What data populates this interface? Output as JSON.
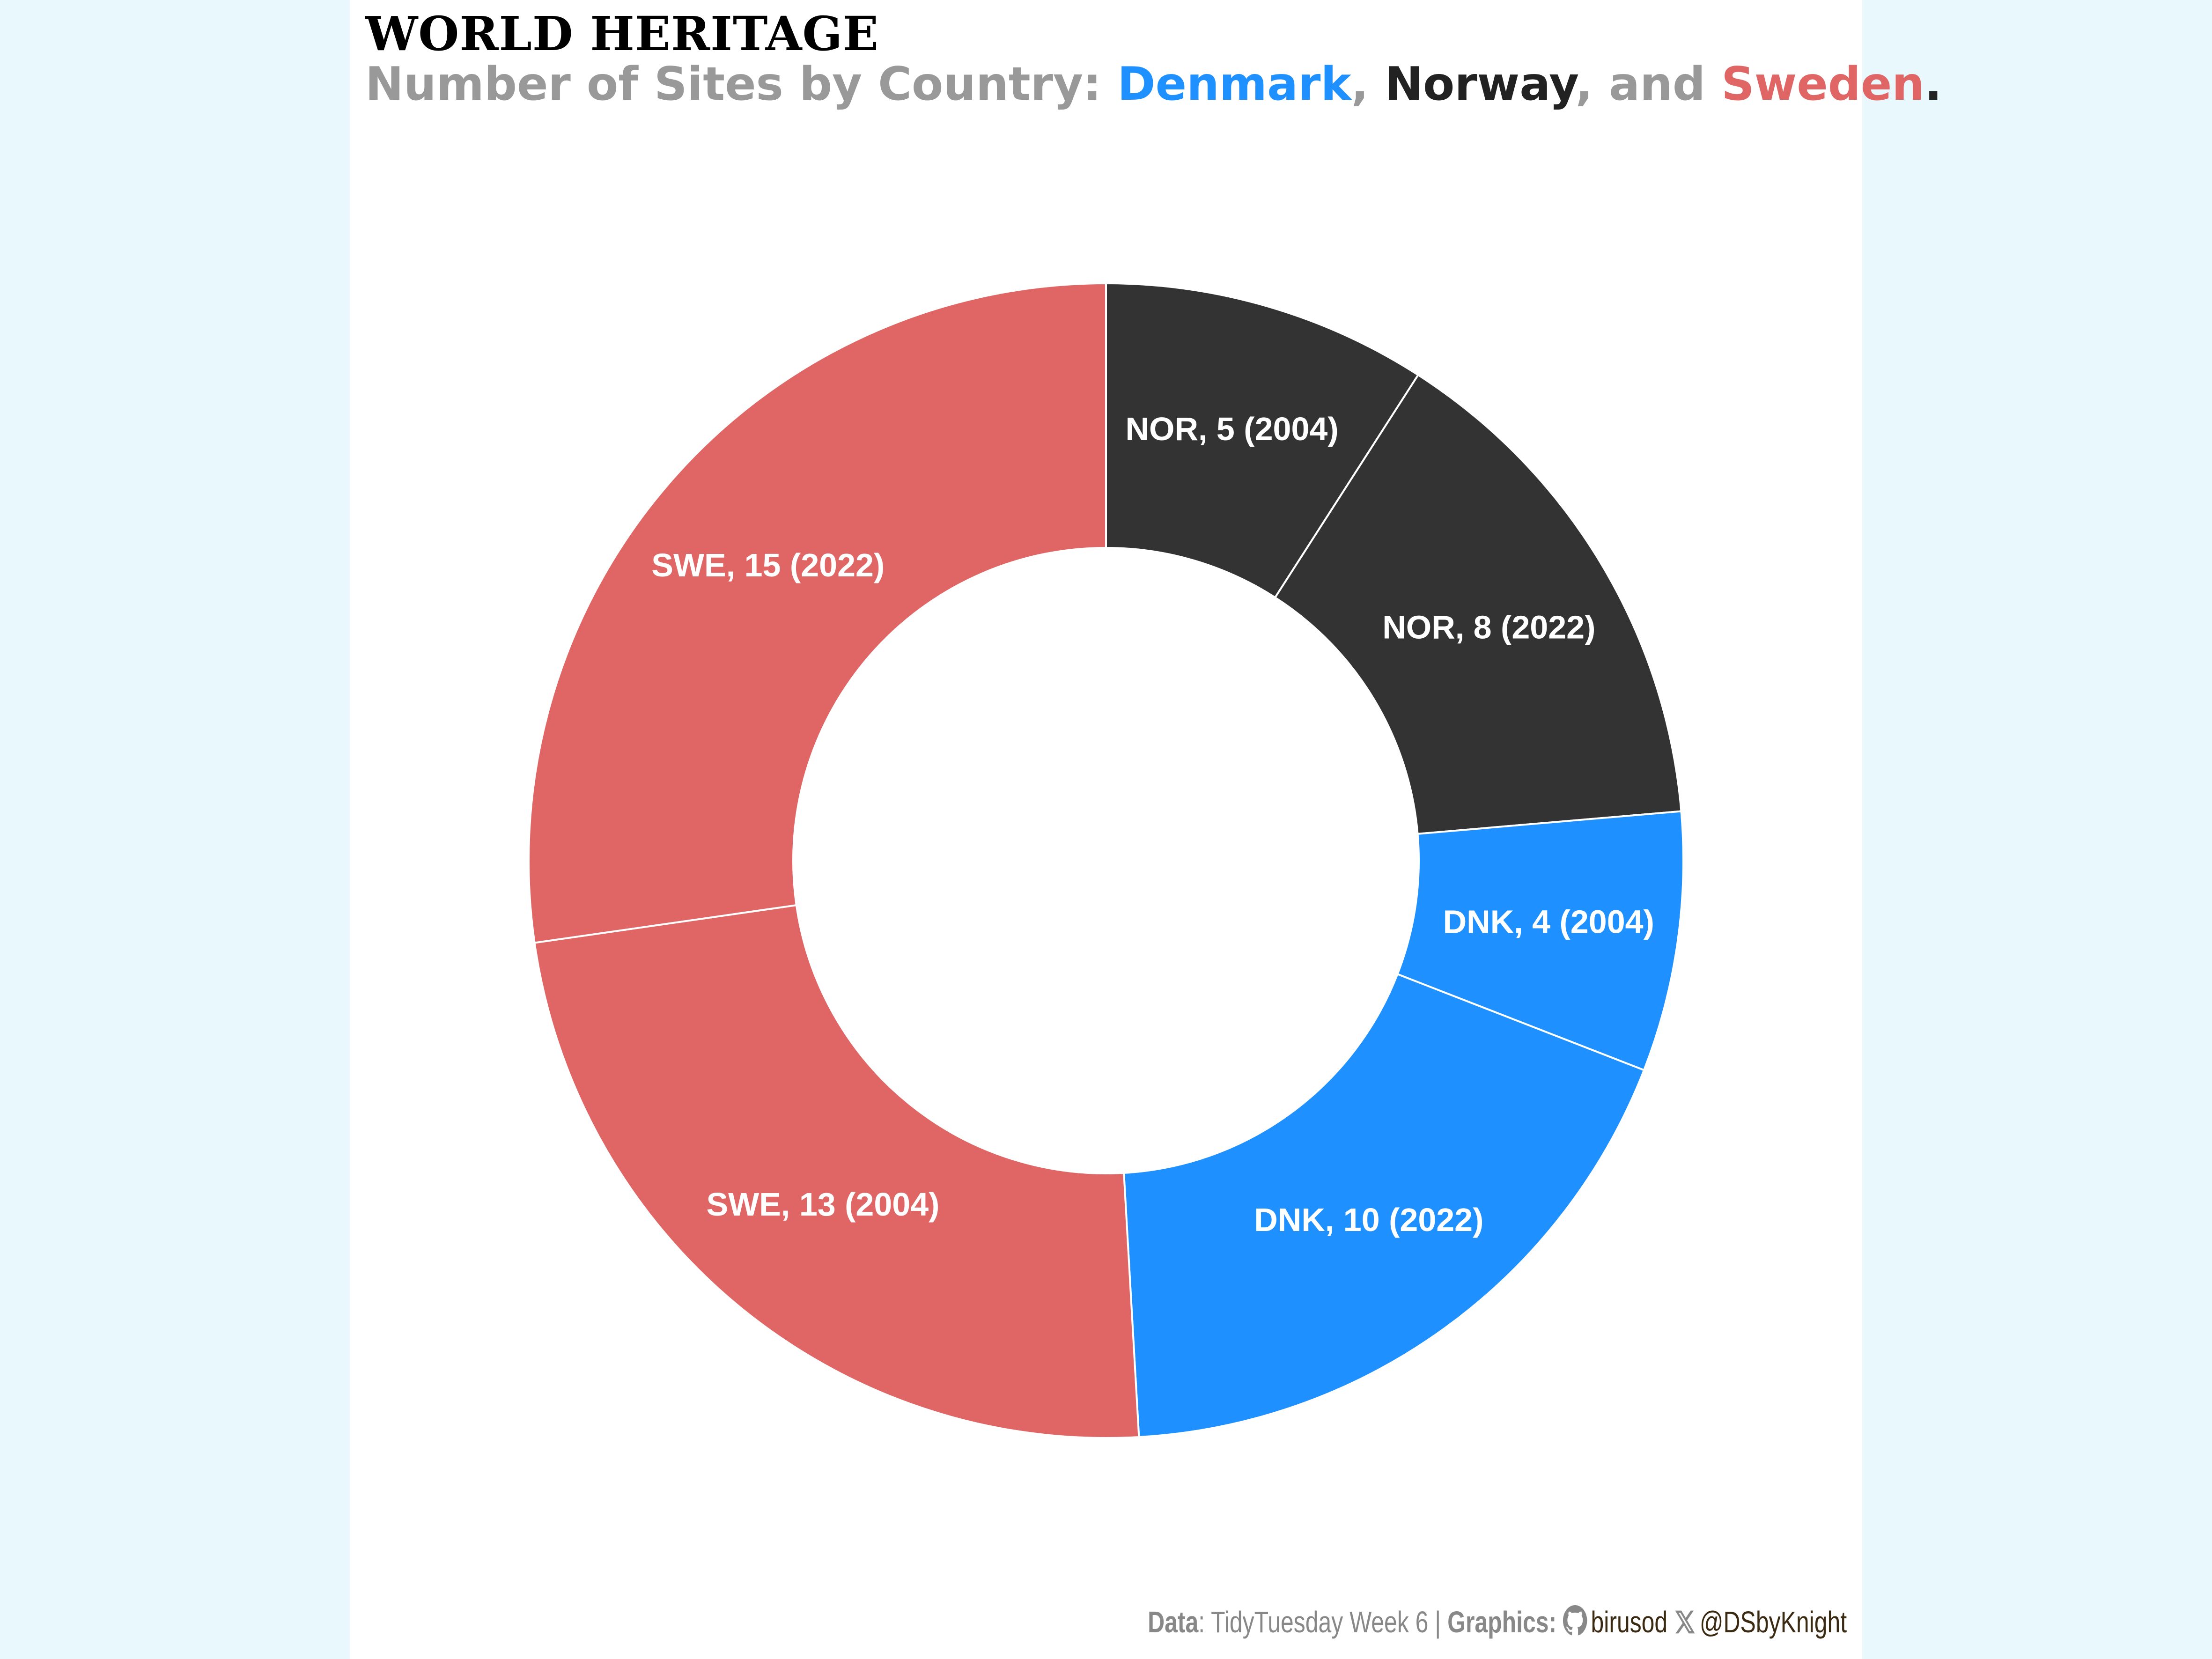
{
  "title": "WORLD HERITAGE",
  "subtitle": {
    "prefix": "Number of Sites by Country: ",
    "denmark": "Denmark",
    "sep1": ", ",
    "norway": "Norway",
    "sep2": ", and ",
    "sweden": "Sweden",
    "end": "."
  },
  "colors": {
    "denmark": "#1e90ff",
    "norway": "#333333",
    "sweden": "#e06666",
    "background": "#e8f8fd",
    "panel": "#ffffff"
  },
  "chart_data": {
    "type": "pie",
    "variant": "donut",
    "slices": [
      {
        "country": "NOR",
        "year": 2004,
        "value": 5,
        "color": "#333333",
        "label": "NOR, 5 (2004)"
      },
      {
        "country": "NOR",
        "year": 2022,
        "value": 8,
        "color": "#333333",
        "label": "NOR, 8 (2022)"
      },
      {
        "country": "DNK",
        "year": 2004,
        "value": 4,
        "color": "#1e90ff",
        "label": "DNK, 4 (2004)"
      },
      {
        "country": "DNK",
        "year": 2022,
        "value": 10,
        "color": "#1e90ff",
        "label": "DNK, 10 (2022)"
      },
      {
        "country": "SWE",
        "year": 2004,
        "value": 13,
        "color": "#e06666",
        "label": "SWE, 13 (2004)"
      },
      {
        "country": "SWE",
        "year": 2022,
        "value": 15,
        "color": "#e06666",
        "label": "SWE, 15 (2022)"
      }
    ]
  },
  "caption": {
    "data_label": "Data",
    "data_value": ": TidyTuesday Week 6 | ",
    "graphics_label": "Graphics:",
    "github_icon": "github-icon",
    "github_handle": "birusod",
    "x_icon": "x-logo-icon",
    "x_handle": "@DSbyKnight"
  }
}
